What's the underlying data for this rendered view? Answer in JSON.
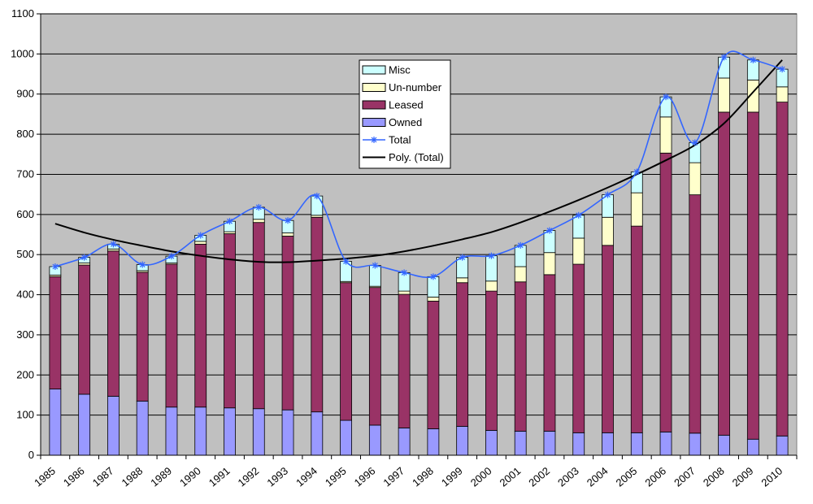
{
  "chart_data": {
    "type": "bar",
    "stacked": true,
    "categories": [
      "1985",
      "1986",
      "1987",
      "1988",
      "1989",
      "1990",
      "1991",
      "1992",
      "1993",
      "1994",
      "1995",
      "1996",
      "1997",
      "1998",
      "1999",
      "2000",
      "2001",
      "2002",
      "2003",
      "2004",
      "2005",
      "2006",
      "2007",
      "2008",
      "2009",
      "2010"
    ],
    "series": [
      {
        "name": "Owned",
        "color": "#9999ff",
        "values": [
          165,
          152,
          147,
          135,
          120,
          120,
          118,
          116,
          113,
          108,
          87,
          75,
          68,
          66,
          72,
          62,
          60,
          60,
          56,
          56,
          56,
          58,
          55,
          50,
          40,
          48
        ]
      },
      {
        "name": "Leased",
        "color": "#993366",
        "values": [
          280,
          322,
          362,
          321,
          356,
          406,
          434,
          464,
          433,
          485,
          343,
          343,
          333,
          318,
          358,
          347,
          372,
          390,
          420,
          467,
          515,
          695,
          594,
          805,
          815,
          832
        ]
      },
      {
        "name": "Un-number",
        "color": "#ffffcc",
        "values": [
          4,
          5,
          5,
          4,
          3,
          7,
          5,
          8,
          8,
          5,
          3,
          3,
          8,
          10,
          12,
          25,
          38,
          55,
          65,
          70,
          83,
          90,
          80,
          85,
          80,
          38
        ]
      },
      {
        "name": "Misc",
        "color": "#ccffff",
        "values": [
          21,
          14,
          12,
          15,
          17,
          15,
          26,
          30,
          31,
          48,
          50,
          52,
          46,
          51,
          51,
          63,
          53,
          55,
          57,
          56,
          52,
          50,
          50,
          52,
          50,
          44
        ]
      }
    ],
    "total": {
      "name": "Total",
      "color": "#3366ff",
      "values": [
        470,
        493,
        526,
        475,
        496,
        548,
        583,
        618,
        585,
        646,
        483,
        473,
        455,
        445,
        493,
        497,
        523,
        560,
        598,
        649,
        706,
        893,
        779,
        992,
        985,
        962
      ]
    },
    "trend": {
      "name": "Poly. (Total)",
      "color": "#000000",
      "values": [
        577,
        555,
        537,
        522,
        508,
        497,
        488,
        482,
        481,
        485,
        490,
        497,
        508,
        522,
        538,
        556,
        580,
        607,
        636,
        667,
        700,
        735,
        773,
        827,
        905,
        985
      ]
    },
    "legend": [
      "Misc",
      "Un-number",
      "Leased",
      "Owned",
      "Total",
      "Poly. (Total)"
    ],
    "legend_placement": "top-center",
    "ylim": [
      0,
      1100
    ],
    "yticks": [
      0,
      100,
      200,
      300,
      400,
      500,
      600,
      700,
      800,
      900,
      1000,
      1100
    ],
    "grid": true,
    "title": "",
    "xlabel": "",
    "ylabel": ""
  }
}
